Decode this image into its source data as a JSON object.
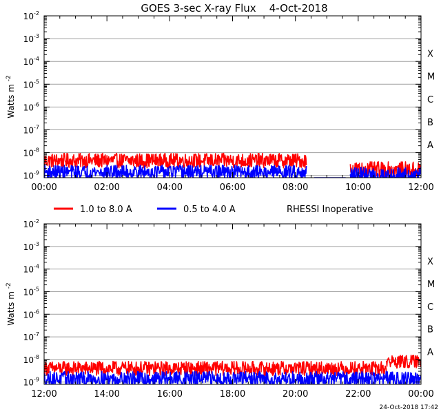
{
  "title": "GOES 3-sec X-ray Flux    4-Oct-2018",
  "footer_timestamp": "24-Oct-2018 17:42",
  "colors": {
    "long": "#ff0000",
    "short": "#0000ff",
    "grid": "#a0a0a0",
    "axis": "#000000"
  },
  "legend": [
    {
      "label": "1.0 to 8.0 A",
      "color": "#ff0000"
    },
    {
      "label": "0.5 to 4.0 A",
      "color": "#0000ff"
    }
  ],
  "legend_note": "RHESSI Inoperative",
  "chart_data": [
    {
      "type": "line",
      "title": "GOES 3-sec X-ray Flux    4-Oct-2018",
      "ylabel": "Watts m",
      "ylabel_exp": "-2",
      "yscale": "log",
      "ylim_exp": [
        -9.1,
        -2
      ],
      "y_ticks": [
        {
          "base": "10",
          "exp": "-9",
          "value": -9
        },
        {
          "base": "10",
          "exp": "-8",
          "value": -8
        },
        {
          "base": "10",
          "exp": "-7",
          "value": -7
        },
        {
          "base": "10",
          "exp": "-6",
          "value": -6
        },
        {
          "base": "10",
          "exp": "-5",
          "value": -5
        },
        {
          "base": "10",
          "exp": "-4",
          "value": -4
        },
        {
          "base": "10",
          "exp": "-3",
          "value": -3
        },
        {
          "base": "10",
          "exp": "-2",
          "value": -2
        }
      ],
      "class_labels": [
        {
          "label": "A",
          "value": -8
        },
        {
          "label": "B",
          "value": -7
        },
        {
          "label": "C",
          "value": -6
        },
        {
          "label": "M",
          "value": -5
        },
        {
          "label": "X",
          "value": -4
        }
      ],
      "xlim_hours": [
        0,
        12
      ],
      "x_ticks": [
        "00:00",
        "02:00",
        "04:00",
        "06:00",
        "08:00",
        "10:00",
        "12:00"
      ],
      "series": [
        {
          "name": "1.0 to 8.0 A",
          "color": "#ff0000",
          "segments": [
            {
              "start": 0.0,
              "end": 8.35,
              "level": -8.35,
              "spread": 0.32
            },
            {
              "start": 9.75,
              "end": 12.0,
              "level": -8.75,
              "spread": 0.35
            }
          ]
        },
        {
          "name": "0.5 to 4.0 A",
          "color": "#0000ff",
          "segments": [
            {
              "start": 0.0,
              "end": 8.35,
              "level": -8.85,
              "spread": 0.3
            },
            {
              "start": 8.6,
              "end": 9.6,
              "level": -9.1,
              "spread": 0.0
            },
            {
              "start": 9.75,
              "end": 12.0,
              "level": -9.0,
              "spread": 0.35
            }
          ]
        }
      ]
    },
    {
      "type": "line",
      "title": "",
      "ylabel": "Watts m",
      "ylabel_exp": "-2",
      "yscale": "log",
      "ylim_exp": [
        -9.1,
        -2
      ],
      "y_ticks": [
        {
          "base": "10",
          "exp": "-9",
          "value": -9
        },
        {
          "base": "10",
          "exp": "-8",
          "value": -8
        },
        {
          "base": "10",
          "exp": "-7",
          "value": -7
        },
        {
          "base": "10",
          "exp": "-6",
          "value": -6
        },
        {
          "base": "10",
          "exp": "-5",
          "value": -5
        },
        {
          "base": "10",
          "exp": "-4",
          "value": -4
        },
        {
          "base": "10",
          "exp": "-3",
          "value": -3
        },
        {
          "base": "10",
          "exp": "-2",
          "value": -2
        }
      ],
      "class_labels": [
        {
          "label": "A",
          "value": -8
        },
        {
          "label": "B",
          "value": -7
        },
        {
          "label": "C",
          "value": -6
        },
        {
          "label": "M",
          "value": -5
        },
        {
          "label": "X",
          "value": -4
        }
      ],
      "xlim_hours": [
        12,
        24
      ],
      "x_ticks": [
        "12:00",
        "14:00",
        "16:00",
        "18:00",
        "20:00",
        "22:00",
        "00:00"
      ],
      "series": [
        {
          "name": "1.0 to 8.0 A",
          "color": "#ff0000",
          "segments": [
            {
              "start": 12.0,
              "end": 22.9,
              "level": -8.4,
              "spread": 0.32
            },
            {
              "start": 22.9,
              "end": 24.0,
              "level": -8.1,
              "spread": 0.3
            }
          ]
        },
        {
          "name": "0.5 to 4.0 A",
          "color": "#0000ff",
          "segments": [
            {
              "start": 12.0,
              "end": 24.0,
              "level": -8.85,
              "spread": 0.32
            }
          ]
        }
      ]
    }
  ]
}
